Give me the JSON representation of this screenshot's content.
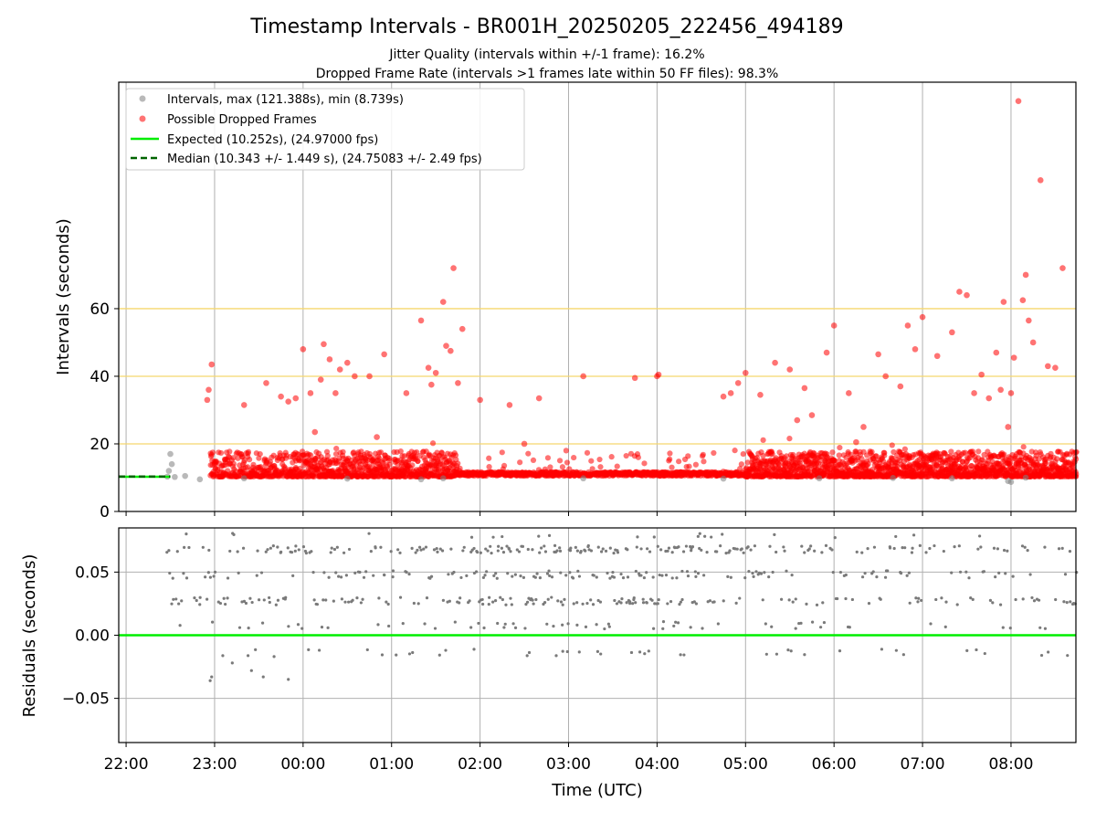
{
  "title": "Timestamp Intervals - BR001H_20250205_222456_494189",
  "subtitle_1": "Jitter Quality (intervals within +/-1 frame): 16.2%",
  "subtitle_2": "Dropped Frame Rate (intervals >1 frames late within 50 FF files): 98.3%",
  "chart_data": [
    {
      "type": "scatter",
      "panel": "intervals",
      "ylabel": "Intervals (seconds)",
      "ylim": [
        0,
        127
      ],
      "yticks": [
        "0",
        "20",
        "40",
        "60"
      ],
      "ytick_values": [
        0,
        20,
        40,
        60
      ],
      "threshold_lines": [
        20,
        40,
        60
      ],
      "threshold_color": "#f5d76e",
      "grid": "vertical",
      "legend_placement": "top-left",
      "legend": [
        "Intervals, max (121.388s), min (8.739s)",
        "Possible Dropped Frames",
        "Expected (10.252s), (24.97000 fps)",
        "Median (10.343 +/- 1.449 s), (24.75083 +/- 2.49 fps)"
      ],
      "colors": {
        "intervals": "#808080",
        "dropped": "#ff0000",
        "expected": "#00ee00",
        "median": "#006400"
      },
      "expected_value": 10.252,
      "median_value": 10.343,
      "series": [
        {
          "name": "Intervals, max (121.388s), min (8.739s)",
          "x": [
            "22:28",
            "22:29",
            "22:30",
            "22:31",
            "22:33",
            "22:40",
            "22:50",
            "23:20",
            "00:30",
            "01:20",
            "01:35",
            "03:10",
            "04:45",
            "05:50",
            "06:40",
            "07:20",
            "07:58",
            "08:00",
            "08:10"
          ],
          "y": [
            10.3,
            12.0,
            17.0,
            14.0,
            10.2,
            10.5,
            9.5,
            9.8,
            9.7,
            9.5,
            9.8,
            9.8,
            9.7,
            9.8,
            9.9,
            9.8,
            9.0,
            8.74,
            10.0
          ]
        },
        {
          "name": "Possible Dropped Frames",
          "x": [
            "22:55",
            "22:56",
            "22:58",
            "23:00",
            "23:10",
            "23:20",
            "23:35",
            "23:45",
            "23:50",
            "23:55",
            "24:00",
            "24:05",
            "24:08",
            "24:12",
            "24:14",
            "24:18",
            "24:22",
            "24:25",
            "24:30",
            "24:35",
            "24:45",
            "24:50",
            "24:55",
            "25:10",
            "25:20",
            "25:25",
            "25:27",
            "25:30",
            "25:35",
            "25:37",
            "25:40",
            "25:42",
            "25:45",
            "25:48",
            "26:00",
            "26:20",
            "26:30",
            "26:40",
            "27:10",
            "27:45",
            "28:00",
            "28:01",
            "28:45",
            "28:50",
            "28:55",
            "29:00",
            "29:10",
            "29:20",
            "29:30",
            "29:35",
            "29:40",
            "29:45",
            "29:55",
            "30:00",
            "30:10",
            "30:15",
            "30:20",
            "30:30",
            "30:35",
            "30:45",
            "30:50",
            "30:55",
            "31:00",
            "31:10",
            "31:20",
            "31:25",
            "31:30",
            "31:35",
            "31:40",
            "31:45",
            "31:50",
            "31:53",
            "31:55",
            "31:58",
            "32:00",
            "32:02",
            "32:05",
            "32:08",
            "32:10",
            "32:12",
            "32:15",
            "32:20",
            "32:25",
            "32:30",
            "32:35"
          ],
          "y": [
            33.0,
            36.0,
            43.5,
            14.0,
            16.0,
            31.5,
            38.0,
            34.0,
            32.5,
            33.5,
            48.0,
            35.0,
            23.5,
            39.0,
            49.5,
            45.0,
            35.0,
            42.0,
            44.0,
            40.0,
            40.0,
            22.0,
            46.5,
            35.0,
            56.5,
            42.5,
            37.5,
            41.0,
            62.0,
            49.0,
            47.5,
            72.0,
            38.0,
            54.0,
            33.0,
            31.5,
            20.0,
            33.5,
            40.0,
            39.5,
            40.0,
            40.5,
            34.0,
            35.0,
            38.0,
            41.0,
            34.5,
            44.0,
            42.0,
            27.0,
            36.5,
            28.5,
            47.0,
            55.0,
            35.0,
            20.5,
            25.0,
            46.5,
            40.0,
            37.0,
            55.0,
            48.0,
            57.5,
            46.0,
            53.0,
            65.0,
            64.0,
            35.0,
            40.5,
            33.5,
            47.0,
            36.0,
            62.0,
            25.0,
            35.0,
            45.5,
            121.4,
            62.5,
            70.0,
            56.5,
            50.0,
            98.0,
            43.0,
            42.5,
            72.0
          ]
        }
      ]
    },
    {
      "type": "scatter",
      "panel": "residuals",
      "xlabel": "Time (UTC)",
      "ylabel": "Residuals (seconds)",
      "ylim": [
        -0.085,
        0.085
      ],
      "yticks": [
        "−0.05",
        "0.00",
        "0.05"
      ],
      "ytick_values": [
        -0.05,
        0.0,
        0.05
      ],
      "xticks": [
        "22:00",
        "23:00",
        "00:00",
        "01:00",
        "02:00",
        "03:00",
        "04:00",
        "05:00",
        "06:00",
        "07:00",
        "08:00"
      ],
      "xlim": [
        "21:55",
        "08:44"
      ],
      "grid": "both",
      "reference_line": 0.0,
      "residual_bands": [
        0.068,
        0.048,
        0.027,
        0.008,
        -0.014
      ],
      "colors": {
        "points": "#7a7a7a",
        "zero": "#00ee00"
      }
    }
  ]
}
